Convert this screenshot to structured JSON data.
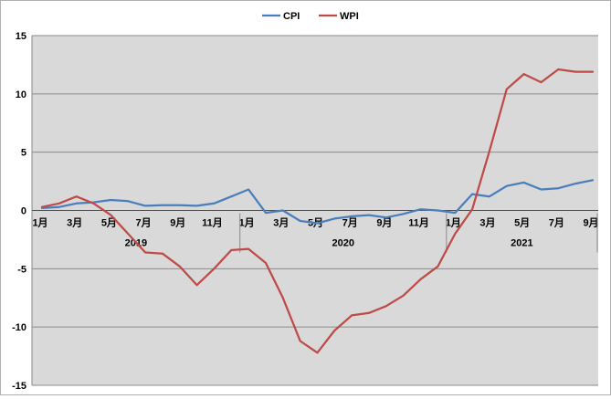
{
  "chart_data": {
    "type": "line",
    "title": "",
    "xlabel": "",
    "ylabel": "",
    "ylim": [
      -15,
      15
    ],
    "yticks": [
      15,
      10,
      5,
      0,
      -5,
      -10,
      -15
    ],
    "grid": "horizontal",
    "legend_position": "top-center",
    "month_labels": [
      "1月",
      "3月",
      "5月",
      "7月",
      "9月",
      "11月",
      "1月",
      "3月",
      "5月",
      "7月",
      "9月",
      "11月",
      "1月",
      "3月",
      "5月",
      "7月",
      "9月"
    ],
    "month_label_index": [
      0,
      2,
      4,
      6,
      8,
      10,
      12,
      14,
      16,
      18,
      20,
      22,
      24,
      26,
      28,
      30,
      32
    ],
    "years": [
      {
        "label": "2019",
        "start": 0,
        "end": 11
      },
      {
        "label": "2020",
        "start": 12,
        "end": 23
      },
      {
        "label": "2021",
        "start": 24,
        "end": 32
      }
    ],
    "x": [
      "2019-01",
      "2019-02",
      "2019-03",
      "2019-04",
      "2019-05",
      "2019-06",
      "2019-07",
      "2019-08",
      "2019-09",
      "2019-10",
      "2019-11",
      "2019-12",
      "2020-01",
      "2020-02",
      "2020-03",
      "2020-04",
      "2020-05",
      "2020-06",
      "2020-07",
      "2020-08",
      "2020-09",
      "2020-10",
      "2020-11",
      "2020-12",
      "2021-01",
      "2021-02",
      "2021-03",
      "2021-04",
      "2021-05",
      "2021-06",
      "2021-07",
      "2021-08",
      "2021-09"
    ],
    "series": [
      {
        "name": "CPI",
        "color": "#4a7ebb",
        "values": [
          0.2,
          0.3,
          0.6,
          0.7,
          0.9,
          0.8,
          0.4,
          0.45,
          0.45,
          0.4,
          0.6,
          1.2,
          1.8,
          -0.2,
          0.0,
          -0.9,
          -1.1,
          -0.7,
          -0.5,
          -0.4,
          -0.6,
          -0.3,
          0.1,
          0.0,
          -0.2,
          1.4,
          1.2,
          2.1,
          2.4,
          1.8,
          1.9,
          2.3,
          2.6
        ]
      },
      {
        "name": "WPI",
        "color": "#be4b48",
        "values": [
          0.3,
          0.6,
          1.2,
          0.6,
          -0.4,
          -2.0,
          -3.6,
          -3.7,
          -4.8,
          -6.4,
          -5.0,
          -3.4,
          -3.3,
          -4.5,
          -7.5,
          -11.2,
          -12.2,
          -10.3,
          -9.0,
          -8.8,
          -8.2,
          -7.3,
          -5.9,
          -4.8,
          -2.0,
          0.1,
          5.1,
          10.4,
          11.7,
          11.0,
          12.1,
          11.9,
          11.9
        ]
      }
    ]
  }
}
